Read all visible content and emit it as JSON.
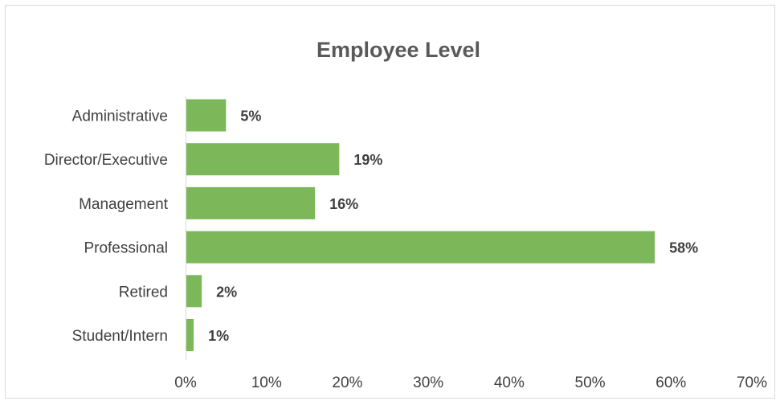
{
  "chart_data": {
    "type": "bar",
    "orientation": "horizontal",
    "title": "Employee Level",
    "xlabel": "",
    "ylabel": "",
    "categories": [
      "Administrative",
      "Director/Executive",
      "Management",
      "Professional",
      "Retired",
      "Student/Intern"
    ],
    "values": [
      5,
      19,
      16,
      58,
      2,
      1
    ],
    "data_labels": [
      "5%",
      "19%",
      "16%",
      "58%",
      "2%",
      "1%"
    ],
    "xlim": [
      0,
      70
    ],
    "x_ticks": [
      "0%",
      "10%",
      "20%",
      "30%",
      "40%",
      "50%",
      "60%",
      "70%"
    ],
    "bar_color": "#7cb85a",
    "grid": false,
    "legend": "none"
  }
}
